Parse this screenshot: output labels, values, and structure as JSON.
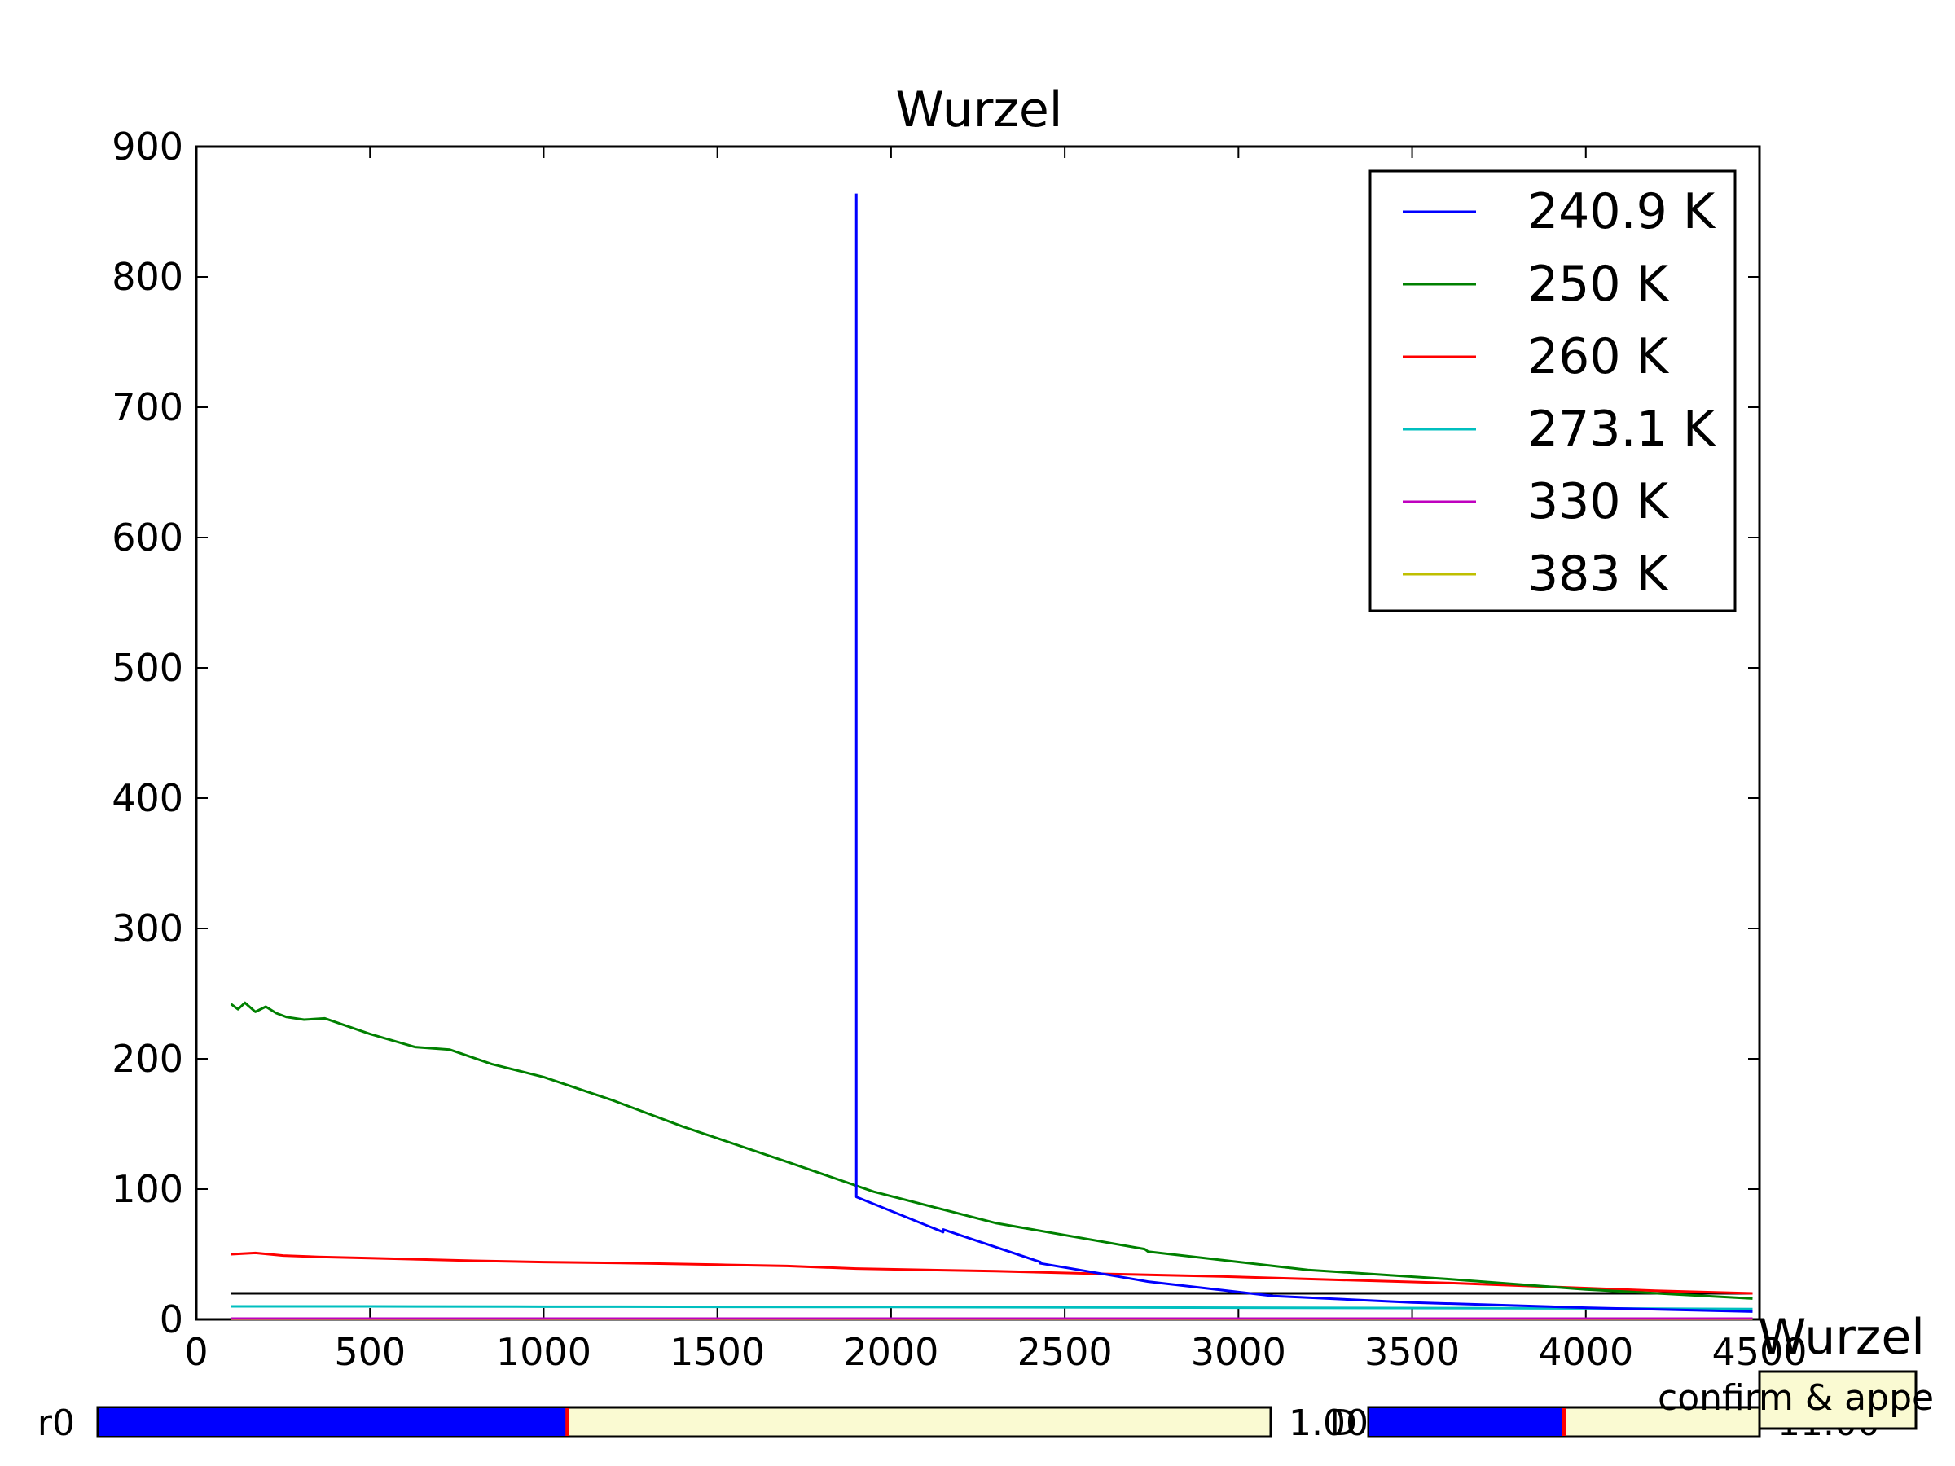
{
  "chart_data": {
    "type": "line",
    "title": "Wurzel",
    "xlabel": "",
    "ylabel": "",
    "xlim": [
      0,
      4500
    ],
    "ylim": [
      0,
      900
    ],
    "x_ticks": [
      "0",
      "500",
      "1000",
      "1500",
      "2000",
      "2500",
      "3000",
      "3500",
      "4000",
      "4500"
    ],
    "y_ticks": [
      "0",
      "100",
      "200",
      "300",
      "400",
      "500",
      "600",
      "700",
      "800",
      "900"
    ],
    "grid": false,
    "legend_position": "top-right",
    "series": [
      {
        "name": "240.9 K",
        "color": "#0000ff",
        "x": [
          1900,
          1900,
          1900,
          2150,
          2150,
          2430,
          2430,
          2740,
          2740,
          3100,
          3500,
          4000,
          4480
        ],
        "y": [
          864,
          864,
          94,
          67,
          69,
          44,
          43,
          29,
          29,
          18,
          13,
          9,
          6
        ]
      },
      {
        "name": "250 K",
        "color": "#008000",
        "x": [
          100,
          120,
          140,
          170,
          200,
          230,
          260,
          310,
          370,
          500,
          630,
          730,
          850,
          1000,
          1200,
          1400,
          1700,
          1950,
          2300,
          2730,
          2740,
          3200,
          3600,
          4000,
          4480
        ],
        "y": [
          242,
          238,
          243,
          236,
          240,
          235,
          232,
          230,
          231,
          219,
          209,
          207,
          196,
          186,
          168,
          148,
          121,
          98,
          74,
          54,
          52,
          38,
          31,
          23,
          16
        ]
      },
      {
        "name": "260 K",
        "color": "#ff0000",
        "x": [
          100,
          170,
          250,
          350,
          500,
          650,
          800,
          1000,
          1300,
          1500,
          1700,
          1900,
          2300,
          2600,
          2950,
          3200,
          3600,
          3900,
          4200,
          4480
        ],
        "y": [
          50,
          51,
          49,
          48,
          47,
          46,
          45,
          44,
          43,
          42,
          41,
          39,
          37,
          35,
          33,
          31,
          28,
          25,
          22,
          20
        ]
      },
      {
        "name": "273.1 K",
        "color": "#00bfbf",
        "x": [
          100,
          500,
          1000,
          2000,
          3000,
          4000,
          4480
        ],
        "y": [
          10,
          10,
          9.8,
          9.5,
          9,
          8.5,
          8
        ]
      },
      {
        "name": "330 K",
        "color": "#bf00bf",
        "x": [
          100,
          4480
        ],
        "y": [
          0.6,
          0.6
        ]
      },
      {
        "name": "383 K",
        "color": "#bfbf00",
        "x": [
          100,
          4480
        ],
        "y": [
          0.3,
          0.3
        ]
      }
    ],
    "reference_line": {
      "color": "#000000",
      "x": [
        100,
        4480
      ],
      "y": [
        20,
        20
      ]
    }
  },
  "widgets": {
    "slider_left": {
      "label": "r0",
      "value_text": "1.00",
      "fill_fraction": 0.4
    },
    "slider_right": {
      "label": "D",
      "value_text": "11.00",
      "fill_fraction": 0.5
    },
    "overlay_title": "Wurzel",
    "button_label": "confirm & appe",
    "colors": {
      "fill": "#0000ff",
      "track": "#fafad2",
      "marker": "#ff0000"
    }
  }
}
